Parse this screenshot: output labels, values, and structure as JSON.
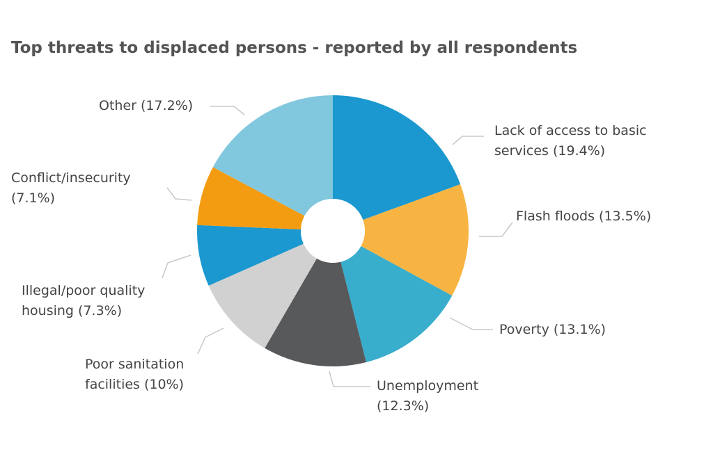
{
  "chart_data": {
    "type": "pie",
    "title": "Top threats to displaced persons - reported by all respondents",
    "slices": [
      {
        "name": "Lack of access to basic services",
        "value": 19.4,
        "color": "#1b98cf",
        "label": [
          "Lack of access to basic",
          "services (19.4%)"
        ]
      },
      {
        "name": "Flash floods",
        "value": 13.5,
        "color": "#f8b443",
        "label": [
          "Flash floods (13.5%)"
        ]
      },
      {
        "name": "Poverty",
        "value": 13.1,
        "color": "#38adcc",
        "label": [
          "Poverty (13.1%)"
        ]
      },
      {
        "name": "Unemployment",
        "value": 12.3,
        "color": "#58595b",
        "label": [
          "Unemployment",
          "(12.3%)"
        ]
      },
      {
        "name": "Poor sanitation facilities",
        "value": 10,
        "color": "#d1d1d1",
        "label": [
          "Poor sanitation",
          "facilities (10%)"
        ]
      },
      {
        "name": "Illegal/poor quality housing",
        "value": 7.3,
        "color": "#1b98cf",
        "label": [
          "Illegal/poor quality",
          "housing (7.3%)"
        ]
      },
      {
        "name": "Conflict/insecurity",
        "value": 7.1,
        "color": "#f39c12",
        "label": [
          "Conflict/insecurity",
          "(7.1%)"
        ]
      },
      {
        "name": "Other",
        "value": 17.2,
        "color": "#81c7dd",
        "label": [
          "Other (17.2%)"
        ]
      }
    ],
    "legend": "none",
    "donut": true
  }
}
